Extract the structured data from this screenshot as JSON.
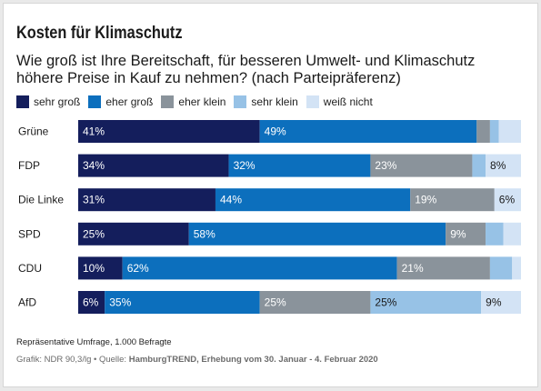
{
  "title": "Kosten für Klimaschutz",
  "subtitle": "Wie groß ist Ihre Bereitschaft, für besseren Umwelt- und Klimaschutz höhere Preise in Kauf zu nehmen? (nach Parteipräferenz)",
  "note": "Repräsentative Umfrage, 1.000 Befragte",
  "source": {
    "prefix": "Grafik: NDR 90,3/lg • Quelle: ",
    "bold": "HamburgTREND, Erhebung vom 30. Januar - 4. Februar 2020"
  },
  "chart_data": {
    "type": "bar",
    "orientation": "horizontal",
    "stacked": true,
    "normalized": true,
    "categories": [
      "Grüne",
      "FDP",
      "Die Linke",
      "SPD",
      "CDU",
      "AfD"
    ],
    "series": [
      {
        "name": "sehr groß",
        "color": "#141e5c",
        "values": [
          41,
          34,
          31,
          25,
          10,
          6
        ]
      },
      {
        "name": "eher groß",
        "color": "#0c6fbd",
        "values": [
          49,
          32,
          44,
          58,
          62,
          35
        ]
      },
      {
        "name": "eher klein",
        "color": "#8a939b",
        "values": [
          3,
          23,
          19,
          9,
          21,
          25
        ]
      },
      {
        "name": "sehr klein",
        "color": "#97c2e6",
        "values": [
          2,
          3,
          0,
          4,
          5,
          25
        ]
      },
      {
        "name": "weiß nicht",
        "color": "#d3e3f5",
        "values": [
          5,
          8,
          6,
          4,
          2,
          9
        ]
      }
    ],
    "data_labels": [
      [
        "41%",
        "49%",
        "",
        "",
        ""
      ],
      [
        "34%",
        "32%",
        "23%",
        "",
        "8%"
      ],
      [
        "31%",
        "44%",
        "19%",
        "",
        "6%"
      ],
      [
        "25%",
        "58%",
        "9%",
        "",
        ""
      ],
      [
        "10%",
        "62%",
        "21%",
        "",
        ""
      ],
      [
        "6%",
        "35%",
        "25%",
        "25%",
        "9%"
      ]
    ],
    "legend_position": "top-left",
    "grid": false
  }
}
